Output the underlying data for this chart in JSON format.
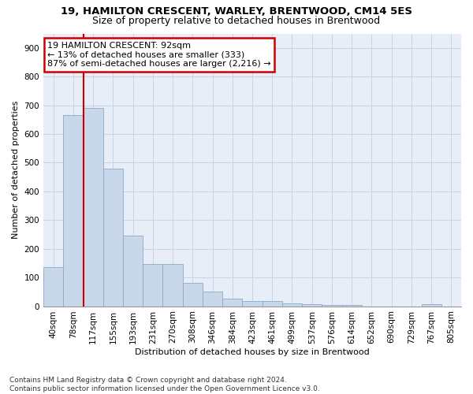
{
  "title1": "19, HAMILTON CRESCENT, WARLEY, BRENTWOOD, CM14 5ES",
  "title2": "Size of property relative to detached houses in Brentwood",
  "xlabel": "Distribution of detached houses by size in Brentwood",
  "ylabel": "Number of detached properties",
  "categories": [
    "40sqm",
    "78sqm",
    "117sqm",
    "155sqm",
    "193sqm",
    "231sqm",
    "270sqm",
    "308sqm",
    "346sqm",
    "384sqm",
    "423sqm",
    "461sqm",
    "499sqm",
    "537sqm",
    "576sqm",
    "614sqm",
    "652sqm",
    "690sqm",
    "729sqm",
    "767sqm",
    "805sqm"
  ],
  "values": [
    135,
    665,
    690,
    480,
    245,
    148,
    148,
    82,
    50,
    25,
    18,
    18,
    10,
    8,
    5,
    5,
    0,
    0,
    0,
    8,
    0
  ],
  "bar_color": "#c8d8ea",
  "bar_edge_color": "#8aaac8",
  "grid_color": "#c8d4e4",
  "bg_color": "#e8eef8",
  "annotation_line1": "19 HAMILTON CRESCENT: 92sqm",
  "annotation_line2": "← 13% of detached houses are smaller (333)",
  "annotation_line3": "87% of semi-detached houses are larger (2,216) →",
  "annotation_box_color": "#cc0000",
  "vline_color": "#cc0000",
  "vline_position": 1.5,
  "ylim_max": 950,
  "yticks": [
    0,
    100,
    200,
    300,
    400,
    500,
    600,
    700,
    800,
    900
  ],
  "footnote_line1": "Contains HM Land Registry data © Crown copyright and database right 2024.",
  "footnote_line2": "Contains public sector information licensed under the Open Government Licence v3.0.",
  "title1_fontsize": 9.5,
  "title2_fontsize": 9,
  "axis_label_fontsize": 8,
  "tick_fontsize": 7.5,
  "annot_fontsize": 8,
  "footnote_fontsize": 6.5
}
